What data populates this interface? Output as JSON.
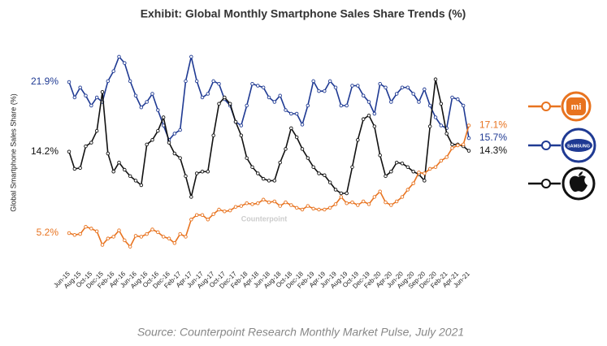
{
  "chart_data": {
    "type": "line",
    "title": "Exhibit: Global Monthly Smartphone Sales Share Trends (%)",
    "y_label": "Global Smartphone Sales Share (%)",
    "watermark": "Counterpoint",
    "source": "Source: Counterpoint Research Monthly Market Pulse, July 2021",
    "categories": [
      "Jun-15",
      null,
      "Aug-15",
      null,
      "Oct-15",
      null,
      "Dec-15",
      null,
      "Feb-16",
      null,
      "Apr-16",
      null,
      "Jun-16",
      null,
      "Aug-16",
      null,
      "Oct-16",
      null,
      "Dec-16",
      null,
      "Feb-17",
      null,
      "Apr-17",
      null,
      "Jun-17",
      null,
      "Aug-17",
      null,
      "Oct-17",
      null,
      "Dec-17",
      null,
      "Feb-18",
      null,
      "Apr-18",
      null,
      "Jun-18",
      null,
      "Aug-18",
      null,
      "Oct-18",
      null,
      "Dec-18",
      null,
      "Feb-19",
      null,
      "Apr-19",
      null,
      "Jun-19",
      null,
      "Aug-19",
      null,
      "Oct-19",
      null,
      "Dec-19",
      null,
      "Feb-20",
      null,
      "Apr-20",
      null,
      "Jun-20",
      null,
      "Aug-20",
      null,
      "Sep-20",
      null,
      "Dec-20",
      null,
      "Feb-21",
      null,
      "Apr-21",
      null,
      "Jun-21"
    ],
    "ylim": [
      3,
      25
    ],
    "series": [
      {
        "name": "SAMSUNG",
        "color": "#1f3a93",
        "values": [
          21.9,
          20.2,
          21.3,
          20.4,
          19.3,
          20.2,
          19.7,
          22.0,
          23.1,
          24.7,
          24.0,
          22.0,
          20.4,
          19.1,
          19.7,
          20.6,
          18.8,
          17.1,
          15.5,
          16.2,
          16.6,
          22.0,
          24.7,
          22.0,
          20.2,
          20.6,
          22.0,
          21.7,
          20.0,
          19.3,
          17.5,
          17.1,
          19.3,
          21.7,
          21.5,
          21.3,
          20.2,
          19.7,
          20.4,
          18.8,
          18.4,
          18.4,
          17.2,
          19.3,
          22.0,
          20.9,
          20.9,
          22.0,
          21.3,
          19.3,
          19.3,
          21.5,
          21.5,
          20.4,
          19.7,
          18.4,
          21.7,
          21.3,
          19.7,
          20.6,
          21.3,
          21.3,
          20.6,
          19.7,
          21.1,
          19.3,
          18.0,
          17.1,
          16.8,
          20.2,
          20.0,
          19.3,
          15.7
        ],
        "value_labels": [
          "21.9%",
          null,
          null,
          null,
          null,
          null,
          null,
          null,
          null,
          null,
          null,
          null,
          null,
          null,
          null,
          null,
          null,
          null,
          null,
          null,
          null,
          null,
          null,
          null,
          null,
          null,
          null,
          null,
          null,
          null,
          null,
          null,
          null,
          null,
          null,
          null,
          null,
          null,
          null,
          null,
          null,
          null,
          null,
          null,
          null,
          null,
          null,
          null,
          null,
          null,
          null,
          null,
          null,
          null,
          null,
          null,
          null,
          null,
          null,
          null,
          null,
          null,
          null,
          null,
          null,
          null,
          null,
          null,
          null,
          null,
          null,
          null,
          "15.7%"
        ]
      },
      {
        "color": "#111111",
        "values": [
          14.2,
          12.3,
          12.4,
          14.8,
          15.2,
          16.5,
          20.8,
          14.0,
          12.0,
          13.0,
          12.2,
          11.5,
          11.0,
          10.5,
          15.0,
          15.5,
          16.5,
          18.0,
          15.2,
          14.0,
          13.5,
          11.5,
          9.2,
          11.8,
          12.0,
          12.0,
          16.0,
          19.5,
          20.2,
          19.5,
          17.5,
          16.0,
          13.5,
          12.5,
          11.8,
          11.2,
          11.0,
          11.0,
          13.0,
          14.5,
          16.8,
          15.8,
          14.5,
          13.5,
          12.5,
          11.8,
          11.6,
          10.8,
          10.0,
          9.6,
          9.6,
          12.5,
          15.5,
          17.8,
          18.2,
          17.0,
          13.8,
          11.5,
          12.0,
          13.0,
          12.9,
          12.5,
          12.0,
          11.7,
          11.0,
          17.0,
          22.2,
          19.5,
          16.2,
          15.0,
          15.0,
          14.8,
          14.3
        ],
        "value_labels": [
          "14.2%",
          null,
          null,
          null,
          null,
          null,
          null,
          null,
          null,
          null,
          null,
          null,
          null,
          null,
          null,
          null,
          null,
          null,
          null,
          null,
          null,
          null,
          null,
          null,
          null,
          null,
          null,
          null,
          null,
          null,
          null,
          null,
          null,
          null,
          null,
          null,
          null,
          null,
          null,
          null,
          null,
          null,
          null,
          null,
          null,
          null,
          null,
          null,
          null,
          null,
          null,
          null,
          null,
          null,
          null,
          null,
          null,
          null,
          null,
          null,
          null,
          null,
          null,
          null,
          null,
          null,
          null,
          null,
          null,
          null,
          null,
          null,
          "14.3%"
        ]
      },
      {
        "name": "mi",
        "color": "#e8731f",
        "values": [
          5.2,
          5.0,
          5.1,
          5.9,
          5.7,
          5.4,
          3.9,
          4.6,
          4.8,
          5.5,
          4.4,
          3.7,
          4.9,
          4.8,
          5.1,
          5.6,
          5.3,
          4.8,
          4.6,
          4.1,
          5.1,
          4.8,
          6.7,
          7.2,
          7.2,
          6.7,
          7.3,
          7.8,
          7.6,
          7.7,
          8.1,
          8.2,
          8.5,
          8.4,
          8.5,
          8.9,
          8.6,
          8.7,
          8.2,
          8.6,
          8.3,
          8.0,
          7.8,
          8.2,
          7.9,
          7.8,
          7.8,
          8.0,
          8.4,
          9.2,
          8.5,
          8.6,
          8.3,
          8.7,
          8.4,
          9.2,
          9.8,
          8.6,
          8.3,
          8.7,
          9.2,
          10.0,
          10.7,
          11.9,
          11.8,
          12.3,
          12.5,
          13.2,
          13.6,
          14.6,
          14.9,
          15.0,
          17.1
        ],
        "value_labels": [
          "5.2%",
          null,
          null,
          null,
          null,
          null,
          null,
          null,
          null,
          null,
          null,
          null,
          null,
          null,
          null,
          null,
          null,
          null,
          null,
          null,
          null,
          null,
          null,
          null,
          null,
          null,
          null,
          null,
          null,
          null,
          null,
          null,
          null,
          null,
          null,
          null,
          null,
          null,
          null,
          null,
          null,
          null,
          null,
          null,
          null,
          null,
          null,
          null,
          null,
          null,
          null,
          null,
          null,
          null,
          null,
          null,
          null,
          null,
          null,
          null,
          null,
          null,
          null,
          null,
          null,
          null,
          null,
          null,
          null,
          null,
          null,
          null,
          "17.1%"
        ]
      }
    ]
  }
}
